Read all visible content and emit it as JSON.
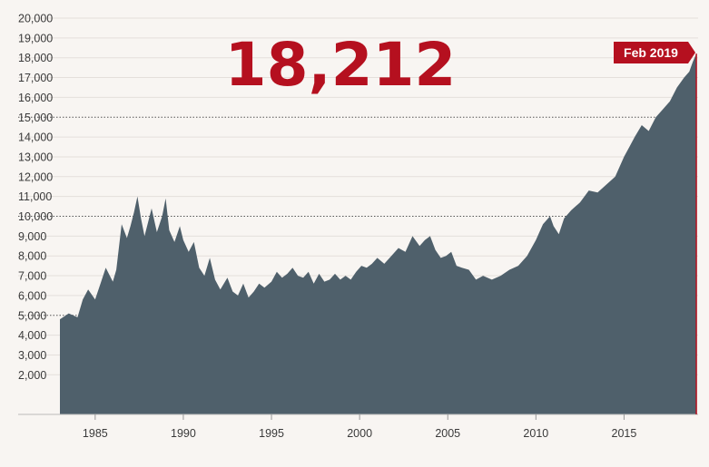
{
  "headline": {
    "value": "18,212"
  },
  "callout": {
    "label": "Feb 2019"
  },
  "colors": {
    "area": "#4f606b",
    "accent": "#b5101f",
    "background": "#f8f5f2",
    "grid": "#e4dfdb"
  },
  "chart_data": {
    "type": "area",
    "title": "",
    "xlabel": "",
    "ylabel": "",
    "xlim": [
      1983,
      2019.2
    ],
    "ylim": [
      0,
      20000
    ],
    "grid": true,
    "x_ticks": [
      1985,
      1990,
      1995,
      2000,
      2005,
      2010,
      2015
    ],
    "y_ticks": [
      2000,
      3000,
      4000,
      5000,
      6000,
      7000,
      8000,
      9000,
      10000,
      11000,
      12000,
      13000,
      14000,
      15000,
      16000,
      17000,
      18000,
      19000,
      20000
    ],
    "y_tick_labels": [
      "2,000",
      "3,000",
      "4,000",
      "5,000",
      "6,000",
      "7,000",
      "8,000",
      "9,000",
      "10,000",
      "11,000",
      "12,000",
      "13,000",
      "14,000",
      "15,000",
      "16,000",
      "17,000",
      "18,000",
      "19,000",
      "20,000"
    ],
    "highlight_y": [
      5000,
      10000,
      15000
    ],
    "series": [
      {
        "x": [
          1983.0,
          1983.5,
          1984.0,
          1984.3,
          1984.6,
          1985.0,
          1985.3,
          1985.6,
          1986.0,
          1986.2,
          1986.5,
          1986.8,
          1987.0,
          1987.2,
          1987.4,
          1987.6,
          1987.8,
          1988.0,
          1988.2,
          1988.5,
          1988.8,
          1989.0,
          1989.2,
          1989.5,
          1989.8,
          1990.0,
          1990.3,
          1990.6,
          1990.9,
          1991.2,
          1991.5,
          1991.8,
          1992.1,
          1992.5,
          1992.8,
          1993.1,
          1993.4,
          1993.7,
          1994.0,
          1994.3,
          1994.6,
          1995.0,
          1995.3,
          1995.6,
          1995.9,
          1996.2,
          1996.5,
          1996.8,
          1997.1,
          1997.4,
          1997.7,
          1998.0,
          1998.3,
          1998.6,
          1998.9,
          1999.2,
          1999.5,
          1999.8,
          2000.1,
          2000.4,
          2000.7,
          2001.0,
          2001.4,
          2001.8,
          2002.2,
          2002.6,
          2003.0,
          2003.4,
          2003.7,
          2004.0,
          2004.3,
          2004.6,
          2004.9,
          2005.2,
          2005.5,
          2005.8,
          2006.2,
          2006.6,
          2007.0,
          2007.5,
          2008.0,
          2008.5,
          2009.0,
          2009.5,
          2010.0,
          2010.4,
          2010.8,
          2011.0,
          2011.3,
          2011.6,
          2012.0,
          2012.5,
          2013.0,
          2013.5,
          2014.0,
          2014.5,
          2015.0,
          2015.3,
          2015.6,
          2016.0,
          2016.4,
          2016.8,
          2017.2,
          2017.6,
          2018.0,
          2018.4,
          2018.7,
          2018.9,
          2019.1
        ],
        "values": [
          4800,
          5100,
          4900,
          5800,
          6300,
          5800,
          6600,
          7400,
          6700,
          7300,
          9600,
          8900,
          9500,
          10200,
          11000,
          9900,
          9000,
          9700,
          10400,
          9200,
          10000,
          10900,
          9300,
          8700,
          9500,
          8800,
          8200,
          8700,
          7400,
          7000,
          7900,
          6800,
          6300,
          6900,
          6200,
          6000,
          6600,
          5900,
          6200,
          6600,
          6400,
          6700,
          7200,
          6900,
          7100,
          7400,
          7000,
          6900,
          7200,
          6600,
          7100,
          6700,
          6800,
          7100,
          6800,
          7000,
          6800,
          7200,
          7500,
          7400,
          7600,
          7900,
          7600,
          8000,
          8400,
          8200,
          9000,
          8500,
          8800,
          9000,
          8300,
          7900,
          8000,
          8200,
          7500,
          7400,
          7300,
          6800,
          7000,
          6800,
          7000,
          7300,
          7500,
          8000,
          8800,
          9600,
          10000,
          9500,
          9100,
          9900,
          10300,
          10700,
          11300,
          11200,
          11600,
          12000,
          13000,
          13500,
          14000,
          14600,
          14300,
          15000,
          15400,
          15800,
          16500,
          17000,
          17300,
          17800,
          18212
        ]
      }
    ]
  }
}
